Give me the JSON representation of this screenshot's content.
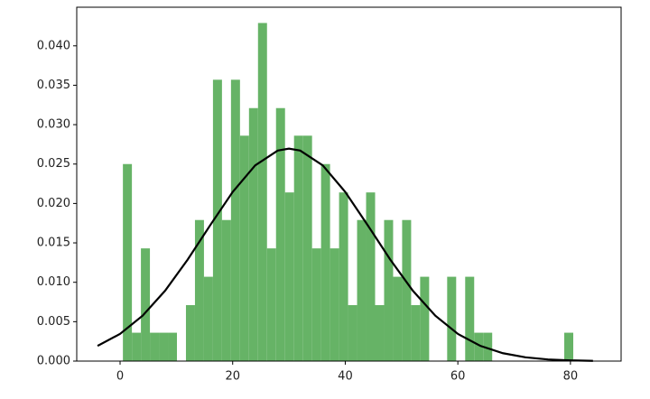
{
  "chart_data": {
    "type": "histogram",
    "bins": [
      0.5,
      2.1,
      3.7,
      5.3,
      6.9,
      8.5,
      10.1,
      11.7,
      13.3,
      14.9,
      16.5,
      18.1,
      19.7,
      21.3,
      22.9,
      24.5,
      26.1,
      27.7,
      29.3,
      30.9,
      32.5,
      34.1,
      35.7,
      37.3,
      38.9,
      40.5,
      42.1,
      43.7,
      45.3,
      46.9,
      48.5,
      50.1,
      51.7,
      53.3,
      54.9,
      56.5,
      58.1,
      59.7,
      61.3,
      62.9,
      64.5,
      66.1,
      67.7,
      69.3,
      70.9,
      72.5,
      74.1,
      75.7,
      77.3,
      78.9,
      80.5
    ],
    "values": [
      0.025,
      0.0036,
      0.0143,
      0.0036,
      0.0036,
      0.0036,
      0,
      0.0071,
      0.0179,
      0.0107,
      0.0357,
      0.0179,
      0.0357,
      0.0286,
      0.0321,
      0.0429,
      0.0143,
      0.0321,
      0.0214,
      0.0286,
      0.0286,
      0.0143,
      0.025,
      0.0143,
      0.0214,
      0.0071,
      0.0179,
      0.0214,
      0.0071,
      0.0179,
      0.0107,
      0.0179,
      0.0071,
      0.0107,
      0,
      0,
      0.0107,
      0,
      0.0107,
      0.0036,
      0.0036,
      0,
      0,
      0,
      0,
      0,
      0,
      0,
      0,
      0.0036
    ],
    "color": "#66b366",
    "line": {
      "type": "line",
      "color": "#000000",
      "x": [
        -4,
        0,
        4,
        8,
        12,
        16,
        20,
        24,
        28,
        30,
        32,
        36,
        40,
        44,
        48,
        52,
        56,
        60,
        64,
        68,
        72,
        76,
        80,
        84
      ],
      "values": [
        0.00193,
        0.00345,
        0.00576,
        0.00893,
        0.01287,
        0.01723,
        0.02146,
        0.02483,
        0.02671,
        0.02696,
        0.02671,
        0.02483,
        0.02146,
        0.01723,
        0.01287,
        0.00893,
        0.00576,
        0.00345,
        0.00193,
        0.001,
        0.00048,
        0.00021,
        9e-05,
        3e-05
      ]
    },
    "xlim": [
      -7.7,
      89
    ],
    "ylim": [
      0,
      0.0449
    ],
    "xticks": [
      0,
      20,
      40,
      60,
      80
    ],
    "yticks": [
      {
        "value": 0,
        "label": "0.000"
      },
      {
        "value": 0.005,
        "label": "0.005"
      },
      {
        "value": 0.01,
        "label": "0.010"
      },
      {
        "value": 0.015,
        "label": "0.015"
      },
      {
        "value": 0.02,
        "label": "0.020"
      },
      {
        "value": 0.025,
        "label": "0.025"
      },
      {
        "value": 0.03,
        "label": "0.030"
      },
      {
        "value": 0.035,
        "label": "0.035"
      },
      {
        "value": 0.04,
        "label": "0.040"
      }
    ]
  }
}
